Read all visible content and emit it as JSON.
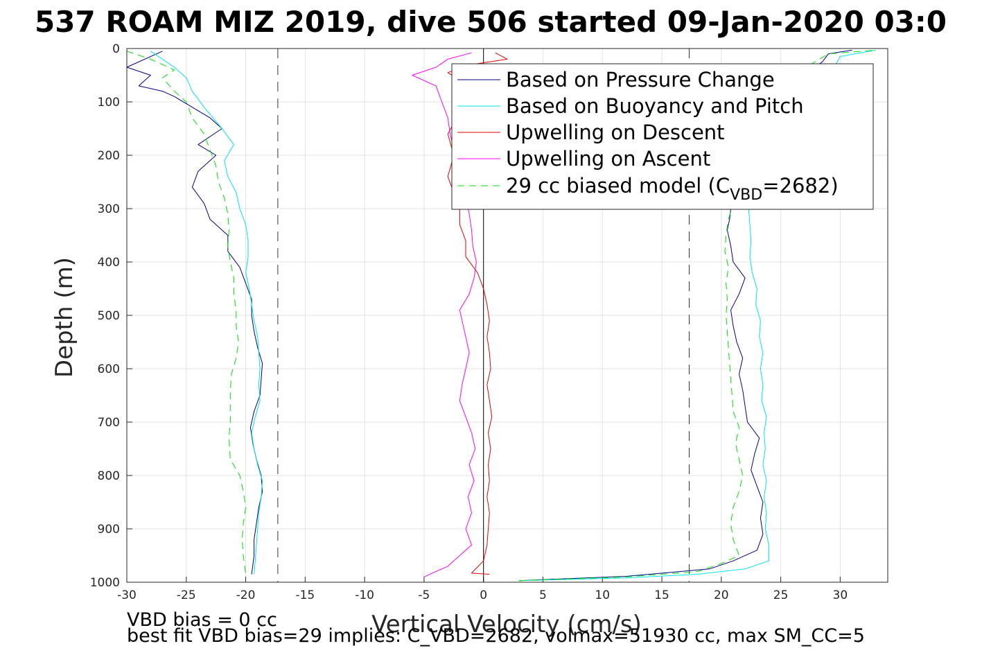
{
  "chart_data": {
    "type": "line",
    "title": "537 ROAM MIZ 2019, dive 506 started 09-Jan-2020 03:0",
    "xlabel": "Vertical Velocity (cm/s)",
    "ylabel": "Depth (m)",
    "xlim": [
      -30,
      34
    ],
    "ylim": [
      0,
      1000
    ],
    "y_reversed": true,
    "grid": true,
    "legend_position": "top-right",
    "x_ticks": [
      -30,
      -25,
      -20,
      -15,
      -10,
      -5,
      0,
      5,
      10,
      15,
      20,
      25,
      30
    ],
    "y_ticks": [
      0,
      100,
      200,
      300,
      400,
      500,
      600,
      700,
      800,
      900,
      1000
    ],
    "reference_lines": {
      "zero_line_x": 0,
      "dashed_lines_x": [
        -17.3,
        17.3
      ]
    },
    "series": [
      {
        "name": "Based on Pressure Change",
        "color": "#00008b",
        "style": "solid",
        "descent": [
          [
            -27,
            5
          ],
          [
            -30,
            35
          ],
          [
            -28,
            50
          ],
          [
            -29,
            70
          ],
          [
            -27,
            80
          ],
          [
            -26,
            90
          ],
          [
            -24.5,
            110
          ],
          [
            -23,
            130
          ],
          [
            -22,
            150
          ],
          [
            -24,
            180
          ],
          [
            -22.5,
            200
          ],
          [
            -24,
            230
          ],
          [
            -24.5,
            260
          ],
          [
            -23.5,
            290
          ],
          [
            -23,
            320
          ],
          [
            -21.5,
            350
          ],
          [
            -21.5,
            380
          ],
          [
            -20.5,
            410
          ],
          [
            -20,
            440
          ],
          [
            -19.5,
            470
          ],
          [
            -19.5,
            500
          ],
          [
            -19.3,
            530
          ],
          [
            -19,
            560
          ],
          [
            -18.6,
            590
          ],
          [
            -18.7,
            620
          ],
          [
            -18.8,
            650
          ],
          [
            -19.3,
            680
          ],
          [
            -19.6,
            710
          ],
          [
            -19.4,
            740
          ],
          [
            -19.1,
            770
          ],
          [
            -18.7,
            800
          ],
          [
            -18.6,
            830
          ],
          [
            -18.9,
            860
          ],
          [
            -19.1,
            890
          ],
          [
            -19.3,
            920
          ],
          [
            -19.3,
            950
          ],
          [
            -19.5,
            985
          ]
        ],
        "ascent": [
          [
            3,
            997
          ],
          [
            12,
            989
          ],
          [
            19,
            975
          ],
          [
            21,
            960
          ],
          [
            23,
            940
          ],
          [
            23.5,
            910
          ],
          [
            23.3,
            880
          ],
          [
            23.5,
            850
          ],
          [
            23,
            820
          ],
          [
            22.5,
            790
          ],
          [
            22.8,
            760
          ],
          [
            23.2,
            730
          ],
          [
            22.2,
            700
          ],
          [
            22,
            670
          ],
          [
            21.8,
            640
          ],
          [
            21.5,
            610
          ],
          [
            21.8,
            580
          ],
          [
            21.3,
            550
          ],
          [
            21,
            520
          ],
          [
            20.8,
            490
          ],
          [
            21.5,
            460
          ],
          [
            22,
            430
          ],
          [
            21,
            400
          ],
          [
            20.8,
            370
          ],
          [
            20.5,
            340
          ],
          [
            20.7,
            320
          ],
          [
            20.8,
            300
          ],
          [
            21,
            270
          ],
          [
            21.5,
            240
          ],
          [
            22,
            210
          ],
          [
            22.5,
            180
          ],
          [
            23,
            150
          ],
          [
            23.5,
            120
          ],
          [
            25,
            90
          ],
          [
            26.5,
            60
          ],
          [
            27.5,
            40
          ],
          [
            28.5,
            25
          ],
          [
            29,
            10
          ],
          [
            31,
            3
          ]
        ]
      },
      {
        "name": "Based on Buoyancy and Pitch",
        "color": "#00e5ee",
        "style": "solid",
        "descent": [
          [
            -28,
            5
          ],
          [
            -26,
            35
          ],
          [
            -25,
            55
          ],
          [
            -24.5,
            80
          ],
          [
            -23.5,
            110
          ],
          [
            -22,
            150
          ],
          [
            -21,
            180
          ],
          [
            -21.8,
            210
          ],
          [
            -21.5,
            240
          ],
          [
            -20.8,
            270
          ],
          [
            -20.5,
            300
          ],
          [
            -20,
            330
          ],
          [
            -19.8,
            360
          ],
          [
            -19.8,
            390
          ],
          [
            -20,
            420
          ],
          [
            -19.7,
            450
          ],
          [
            -19.5,
            480
          ],
          [
            -19.3,
            510
          ],
          [
            -19,
            540
          ],
          [
            -18.9,
            570
          ],
          [
            -18.8,
            600
          ],
          [
            -18.9,
            630
          ],
          [
            -18.8,
            660
          ],
          [
            -19.2,
            690
          ],
          [
            -19.5,
            720
          ],
          [
            -19.3,
            750
          ],
          [
            -19,
            780
          ],
          [
            -18.6,
            810
          ],
          [
            -18.7,
            840
          ],
          [
            -18.9,
            870
          ],
          [
            -19,
            900
          ],
          [
            -19.1,
            930
          ],
          [
            -19.2,
            960
          ],
          [
            -19.3,
            985
          ]
        ],
        "ascent": [
          [
            3,
            997
          ],
          [
            12,
            992
          ],
          [
            18,
            985
          ],
          [
            22,
            975
          ],
          [
            24,
            960
          ],
          [
            24,
            930
          ],
          [
            23.7,
            900
          ],
          [
            23.8,
            870
          ],
          [
            23.6,
            840
          ],
          [
            23.8,
            810
          ],
          [
            23.5,
            780
          ],
          [
            23.7,
            750
          ],
          [
            23.6,
            720
          ],
          [
            23.8,
            690
          ],
          [
            23.4,
            660
          ],
          [
            23.5,
            630
          ],
          [
            23.3,
            600
          ],
          [
            23.5,
            570
          ],
          [
            23.2,
            540
          ],
          [
            23.3,
            510
          ],
          [
            22.9,
            480
          ],
          [
            23,
            450
          ],
          [
            22.6,
            420
          ],
          [
            22.4,
            390
          ],
          [
            22.5,
            360
          ],
          [
            22.4,
            330
          ],
          [
            22.3,
            300
          ],
          [
            22.5,
            270
          ],
          [
            22.8,
            240
          ],
          [
            23.5,
            210
          ],
          [
            24.5,
            180
          ],
          [
            25.5,
            150
          ],
          [
            26.5,
            120
          ],
          [
            27.5,
            90
          ],
          [
            28.5,
            60
          ],
          [
            29.5,
            35
          ],
          [
            30,
            15
          ],
          [
            33,
            3
          ]
        ]
      },
      {
        "name": "Upwelling on Descent",
        "color": "#e60000",
        "style": "solid",
        "points": [
          [
            1,
            8
          ],
          [
            2,
            20
          ],
          [
            -1,
            30
          ],
          [
            -3,
            45
          ],
          [
            -2,
            60
          ],
          [
            -2.5,
            90
          ],
          [
            -2,
            120
          ],
          [
            -3,
            160
          ],
          [
            -2.5,
            200
          ],
          [
            -3,
            240
          ],
          [
            -2.5,
            270
          ],
          [
            -2,
            300
          ],
          [
            -2,
            330
          ],
          [
            -1.5,
            360
          ],
          [
            -1.5,
            390
          ],
          [
            -0.5,
            420
          ],
          [
            0,
            450
          ],
          [
            0.3,
            480
          ],
          [
            0.5,
            510
          ],
          [
            0.3,
            540
          ],
          [
            0.5,
            570
          ],
          [
            0.6,
            600
          ],
          [
            0.3,
            630
          ],
          [
            0.5,
            660
          ],
          [
            0.7,
            690
          ],
          [
            0.4,
            720
          ],
          [
            0.6,
            750
          ],
          [
            0.4,
            780
          ],
          [
            0.5,
            810
          ],
          [
            0.3,
            840
          ],
          [
            0.5,
            870
          ],
          [
            0.4,
            900
          ],
          [
            0.3,
            930
          ],
          [
            0,
            960
          ],
          [
            -1,
            983
          ],
          [
            0.5,
            985
          ]
        ]
      },
      {
        "name": "Upwelling on Ascent",
        "color": "#ff00ff",
        "style": "solid",
        "points": [
          [
            -5,
            990
          ],
          [
            -3,
            970
          ],
          [
            -2,
            950
          ],
          [
            -1,
            930
          ],
          [
            -1.5,
            900
          ],
          [
            -1,
            870
          ],
          [
            -1.3,
            840
          ],
          [
            -0.8,
            810
          ],
          [
            -1.2,
            780
          ],
          [
            -0.7,
            750
          ],
          [
            -1,
            720
          ],
          [
            -1.5,
            690
          ],
          [
            -2,
            660
          ],
          [
            -1.8,
            630
          ],
          [
            -1.5,
            600
          ],
          [
            -1.2,
            570
          ],
          [
            -1.5,
            540
          ],
          [
            -1.8,
            510
          ],
          [
            -2,
            490
          ],
          [
            -1.2,
            460
          ],
          [
            -0.8,
            430
          ],
          [
            -0.6,
            400
          ],
          [
            -0.9,
            370
          ],
          [
            -1,
            340
          ],
          [
            -1.2,
            310
          ],
          [
            -1.5,
            280
          ],
          [
            -1.8,
            250
          ],
          [
            -2,
            220
          ],
          [
            -2.5,
            190
          ],
          [
            -2.8,
            160
          ],
          [
            -3,
            130
          ],
          [
            -3.5,
            100
          ],
          [
            -4,
            70
          ],
          [
            -6,
            50
          ],
          [
            -4,
            35
          ],
          [
            -3,
            20
          ],
          [
            -1,
            8
          ]
        ]
      },
      {
        "name": "29 cc biased model (C_VBD=2682)",
        "color": "#00e000",
        "style": "dashed",
        "descent": [
          [
            -30,
            5
          ],
          [
            -28,
            20
          ],
          [
            -26,
            40
          ],
          [
            -27,
            55
          ],
          [
            -26,
            80
          ],
          [
            -25,
            100
          ],
          [
            -24.5,
            130
          ],
          [
            -23.5,
            160
          ],
          [
            -23,
            190
          ],
          [
            -22.5,
            220
          ],
          [
            -22.3,
            250
          ],
          [
            -21.8,
            280
          ],
          [
            -21.5,
            310
          ],
          [
            -21.4,
            340
          ],
          [
            -21.5,
            370
          ],
          [
            -21.3,
            400
          ],
          [
            -21,
            430
          ],
          [
            -21,
            460
          ],
          [
            -20.8,
            490
          ],
          [
            -20.8,
            520
          ],
          [
            -20.6,
            550
          ],
          [
            -20.8,
            580
          ],
          [
            -21.2,
            610
          ],
          [
            -21.3,
            640
          ],
          [
            -21.3,
            670
          ],
          [
            -21.3,
            700
          ],
          [
            -21.4,
            730
          ],
          [
            -21.3,
            770
          ],
          [
            -20.5,
            800
          ],
          [
            -20.2,
            830
          ],
          [
            -20,
            860
          ],
          [
            -20.2,
            890
          ],
          [
            -20.3,
            920
          ],
          [
            -20.2,
            950
          ],
          [
            -20,
            985
          ]
        ],
        "ascent": [
          [
            3,
            997
          ],
          [
            12,
            990
          ],
          [
            18,
            980
          ],
          [
            20,
            965
          ],
          [
            21.5,
            950
          ],
          [
            21,
            920
          ],
          [
            20.8,
            890
          ],
          [
            21,
            860
          ],
          [
            21.5,
            830
          ],
          [
            21.8,
            800
          ],
          [
            21.5,
            770
          ],
          [
            21.2,
            740
          ],
          [
            21.5,
            710
          ],
          [
            21,
            680
          ],
          [
            20.9,
            650
          ],
          [
            20.8,
            620
          ],
          [
            20.7,
            590
          ],
          [
            20.6,
            560
          ],
          [
            20.5,
            530
          ],
          [
            20.4,
            500
          ],
          [
            20.5,
            470
          ],
          [
            20.4,
            440
          ],
          [
            20.6,
            410
          ],
          [
            20.3,
            380
          ],
          [
            20.4,
            350
          ],
          [
            20.6,
            320
          ],
          [
            21,
            290
          ],
          [
            21.4,
            260
          ],
          [
            21.8,
            230
          ],
          [
            22.4,
            200
          ],
          [
            23,
            170
          ],
          [
            23.8,
            140
          ],
          [
            24.6,
            110
          ],
          [
            25.5,
            80
          ],
          [
            26.5,
            50
          ],
          [
            27.5,
            30
          ],
          [
            29,
            10
          ],
          [
            33,
            3
          ]
        ]
      }
    ],
    "legend": [
      {
        "label": "Based on Pressure Change"
      },
      {
        "label": "Based on Buoyancy and Pitch"
      },
      {
        "label": "Upwelling on Descent"
      },
      {
        "label": "Upwelling on Ascent"
      },
      {
        "label_main": "29 cc biased model (C",
        "label_sub": "VBD",
        "label_end": "=2682)"
      }
    ],
    "annotations": [
      "VBD bias = 0 cc",
      "best fit VBD bias=29 implies: C_VBD=2682, volmax=51930 cc, max SM_CC=5"
    ]
  }
}
